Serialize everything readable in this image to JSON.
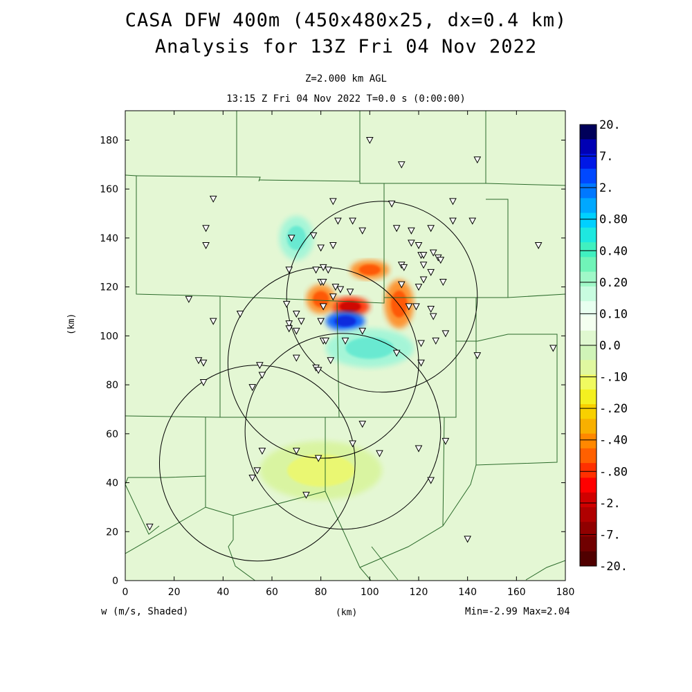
{
  "title_line1": "CASA DFW 400m (450x480x25, dx=0.4 km)",
  "title_line2": "Analysis for 13Z Fri 04 Nov 2022",
  "subtitle_line1": "Z=2.000 km AGL",
  "subtitle_line2": "13:15 Z Fri 04 Nov 2022    T=0.0 s (0:00:00)",
  "field_label": "w (m/s, Shaded)",
  "minmax": "Min=-2.99 Max=2.04",
  "chart_data": {
    "type": "heatmap",
    "xlabel": "(km)",
    "ylabel": "(km)",
    "xlim": [
      0,
      180
    ],
    "ylim": [
      0,
      192
    ],
    "xticks": [
      "0",
      "20",
      "40",
      "60",
      "80",
      "100",
      "120",
      "140",
      "160",
      "180"
    ],
    "yticks": [
      "0",
      "20",
      "40",
      "60",
      "80",
      "100",
      "120",
      "140",
      "160",
      "180"
    ],
    "colorbar_labels": [
      "20.",
      "7.",
      "2.",
      "0.80",
      "0.40",
      "0.20",
      "0.10",
      "0.0",
      "-.10",
      "-.20",
      "-.40",
      "-.80",
      "-2.",
      "-7.",
      "-20."
    ],
    "colorbar_colors": [
      "#00005a",
      "#0000b4",
      "#0018e6",
      "#0048ff",
      "#0078ff",
      "#00a8ff",
      "#00d0ff",
      "#1ee8e0",
      "#40f0c0",
      "#70f4b8",
      "#a0f8c8",
      "#c8fce0",
      "#e8fff0",
      "#f4fff0",
      "#e0f8d0",
      "#d0f4b8",
      "#e0f8a0",
      "#f0fa60",
      "#f4f020",
      "#f8d000",
      "#f8b000",
      "#ff8800",
      "#ff6000",
      "#ff3000",
      "#ff0000",
      "#d00000",
      "#b00000",
      "#900000",
      "#700000",
      "#500000"
    ],
    "radar_circles": [
      {
        "cx": 105,
        "cy": 116,
        "r": 39
      },
      {
        "cx": 81,
        "cy": 89,
        "r": 39
      },
      {
        "cx": 89,
        "cy": 61,
        "r": 40
      },
      {
        "cx": 54,
        "cy": 48,
        "r": 40
      }
    ],
    "anomalies": [
      {
        "cx": 92,
        "cy": 112,
        "rx": 8,
        "ry": 4,
        "sign": "neg",
        "strength": 3
      },
      {
        "cx": 90,
        "cy": 106,
        "rx": 8,
        "ry": 4,
        "sign": "pos",
        "strength": 3
      },
      {
        "cx": 100,
        "cy": 127,
        "rx": 8,
        "ry": 4,
        "sign": "neg",
        "strength": 2
      },
      {
        "cx": 112,
        "cy": 113,
        "rx": 6,
        "ry": 10,
        "sign": "neg",
        "strength": 2
      },
      {
        "cx": 80,
        "cy": 115,
        "rx": 6,
        "ry": 6,
        "sign": "neg",
        "strength": 2
      },
      {
        "cx": 70,
        "cy": 140,
        "rx": 7,
        "ry": 9,
        "sign": "pos",
        "strength": 1
      },
      {
        "cx": 100,
        "cy": 95,
        "rx": 18,
        "ry": 8,
        "sign": "pos",
        "strength": 1
      },
      {
        "cx": 80,
        "cy": 45,
        "rx": 25,
        "ry": 12,
        "sign": "neg",
        "strength": 1
      }
    ],
    "stations": [
      [
        100,
        180
      ],
      [
        113,
        170
      ],
      [
        144,
        172
      ],
      [
        36,
        156
      ],
      [
        85,
        155
      ],
      [
        109,
        154
      ],
      [
        134,
        155
      ],
      [
        33,
        144
      ],
      [
        33,
        137
      ],
      [
        87,
        147
      ],
      [
        93,
        147
      ],
      [
        134,
        147
      ],
      [
        142,
        147
      ],
      [
        68,
        140
      ],
      [
        77,
        141
      ],
      [
        97,
        143
      ],
      [
        111,
        144
      ],
      [
        117,
        143
      ],
      [
        125,
        144
      ],
      [
        169,
        137
      ],
      [
        80,
        136
      ],
      [
        85,
        137
      ],
      [
        117,
        138
      ],
      [
        120,
        137
      ],
      [
        121,
        133
      ],
      [
        122,
        133
      ],
      [
        126,
        134
      ],
      [
        128,
        132
      ],
      [
        122,
        129
      ],
      [
        113,
        129
      ],
      [
        114,
        128
      ],
      [
        125,
        126
      ],
      [
        129,
        131
      ],
      [
        67,
        127
      ],
      [
        78,
        127
      ],
      [
        81,
        128
      ],
      [
        83,
        127
      ],
      [
        80,
        122
      ],
      [
        81,
        122
      ],
      [
        86,
        120
      ],
      [
        88,
        119
      ],
      [
        92,
        118
      ],
      [
        113,
        121
      ],
      [
        120,
        120
      ],
      [
        122,
        123
      ],
      [
        130,
        122
      ],
      [
        26,
        115
      ],
      [
        85,
        116
      ],
      [
        81,
        112
      ],
      [
        66,
        113
      ],
      [
        116,
        112
      ],
      [
        119,
        112
      ],
      [
        125,
        111
      ],
      [
        126,
        108
      ],
      [
        47,
        109
      ],
      [
        36,
        106
      ],
      [
        67,
        105
      ],
      [
        70,
        109
      ],
      [
        72,
        106
      ],
      [
        80,
        106
      ],
      [
        67,
        103
      ],
      [
        70,
        102
      ],
      [
        81,
        98
      ],
      [
        82,
        98
      ],
      [
        90,
        98
      ],
      [
        97,
        102
      ],
      [
        127,
        98
      ],
      [
        131,
        101
      ],
      [
        144,
        92
      ],
      [
        175,
        95
      ],
      [
        30,
        90
      ],
      [
        32,
        89
      ],
      [
        70,
        91
      ],
      [
        78,
        87
      ],
      [
        79,
        86
      ],
      [
        84,
        90
      ],
      [
        111,
        93
      ],
      [
        121,
        97
      ],
      [
        121,
        89
      ],
      [
        32,
        81
      ],
      [
        55,
        88
      ],
      [
        56,
        84
      ],
      [
        52,
        79
      ],
      [
        97,
        64
      ],
      [
        56,
        53
      ],
      [
        70,
        53
      ],
      [
        79,
        50
      ],
      [
        93,
        56
      ],
      [
        104,
        52
      ],
      [
        120,
        54
      ],
      [
        131,
        57
      ],
      [
        52,
        42
      ],
      [
        54,
        45
      ],
      [
        74,
        35
      ],
      [
        125,
        41
      ],
      [
        10,
        22
      ],
      [
        140,
        17
      ]
    ]
  }
}
